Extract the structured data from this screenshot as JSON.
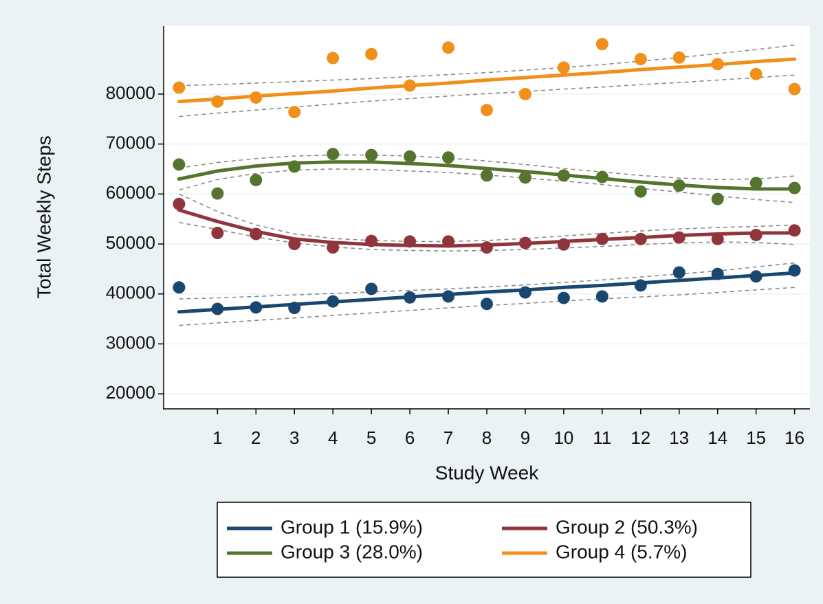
{
  "chart_data": {
    "type": "line",
    "x_label": "Study Week",
    "y_label": "Total Weekly Steps",
    "x": [
      0,
      1,
      2,
      3,
      4,
      5,
      6,
      7,
      8,
      9,
      10,
      11,
      12,
      13,
      14,
      15,
      16
    ],
    "xlim": [
      -0.4,
      16.4
    ],
    "xticks": [
      1,
      2,
      3,
      4,
      5,
      6,
      7,
      8,
      9,
      10,
      11,
      12,
      13,
      14,
      15,
      16
    ],
    "ylim": [
      17000,
      93600
    ],
    "yticks": [
      20000,
      30000,
      40000,
      50000,
      60000,
      70000,
      80000
    ],
    "grid": true,
    "series": [
      {
        "name": "Group 1 (15.9%)",
        "color": "#1a476f",
        "values": [
          41300,
          37000,
          37300,
          37200,
          38500,
          41000,
          39300,
          39500,
          38000,
          40300,
          39200,
          39500,
          41700,
          44300,
          44000,
          43500,
          44700
        ],
        "fit": [
          36400,
          36900,
          37400,
          37900,
          38400,
          38900,
          39400,
          39900,
          40400,
          40800,
          41300,
          41700,
          42200,
          42700,
          43200,
          43700,
          44200
        ],
        "ci_lower": [
          33700,
          34200,
          34700,
          35200,
          35700,
          36200,
          36700,
          37200,
          37700,
          38100,
          38600,
          39000,
          39400,
          39800,
          40300,
          40800,
          41300
        ],
        "ci_upper": [
          39000,
          39200,
          39500,
          39800,
          40100,
          40400,
          40700,
          41000,
          41400,
          41800,
          42300,
          42800,
          43400,
          44000,
          44600,
          45400,
          46200
        ]
      },
      {
        "name": "Group 2 (50.3%)",
        "color": "#90353b",
        "values": [
          58000,
          52200,
          52000,
          50000,
          49300,
          50600,
          50500,
          50500,
          49300,
          50200,
          49900,
          51000,
          51000,
          51300,
          51000,
          51800,
          52700
        ],
        "fit": [
          56800,
          54500,
          52500,
          51000,
          50300,
          49900,
          49700,
          49600,
          49800,
          50100,
          50500,
          50900,
          51300,
          51700,
          52000,
          52200,
          52200
        ],
        "ci_lower": [
          54300,
          52900,
          51400,
          50200,
          49400,
          48900,
          48700,
          48600,
          48700,
          48900,
          49200,
          49500,
          49900,
          50200,
          50400,
          50300,
          49900
        ],
        "ci_upper": [
          60000,
          56500,
          53800,
          52000,
          51100,
          50700,
          50500,
          50500,
          50700,
          51100,
          51600,
          52100,
          52600,
          53000,
          53300,
          53500,
          53800
        ]
      },
      {
        "name": "Group 3 (28.0%)",
        "color": "#55752f",
        "values": [
          65900,
          60100,
          62800,
          65500,
          68000,
          67800,
          67500,
          67300,
          63700,
          63300,
          63700,
          63400,
          60500,
          61700,
          59000,
          62200,
          61200
        ],
        "fit": [
          63000,
          64600,
          65600,
          66200,
          66400,
          66400,
          66100,
          65700,
          65100,
          64500,
          63800,
          63100,
          62400,
          61800,
          61300,
          61000,
          61000
        ],
        "ci_lower": [
          60800,
          62900,
          64100,
          64800,
          65000,
          64900,
          64600,
          64300,
          63800,
          63200,
          62600,
          61900,
          61100,
          60400,
          59600,
          58900,
          58300
        ],
        "ci_upper": [
          65200,
          66300,
          67100,
          67600,
          67800,
          67800,
          67600,
          67200,
          66600,
          65900,
          65100,
          64400,
          63700,
          63200,
          62900,
          63000,
          63600
        ]
      },
      {
        "name": "Group 4 (5.7%)",
        "color": "#f0901a",
        "values": [
          81300,
          78500,
          79300,
          76400,
          87200,
          88000,
          81700,
          89300,
          76800,
          80000,
          85300,
          90000,
          87000,
          87300,
          86000,
          84000,
          81000
        ],
        "fit": [
          78500,
          79000,
          79600,
          80100,
          80600,
          81200,
          81700,
          82200,
          82800,
          83300,
          83800,
          84300,
          84900,
          85400,
          85900,
          86500,
          87000
        ],
        "ci_lower": [
          75500,
          76200,
          76800,
          77400,
          78000,
          78600,
          79100,
          79600,
          80100,
          80500,
          81000,
          81400,
          81900,
          82300,
          82800,
          83300,
          83800
        ],
        "ci_upper": [
          81700,
          81900,
          82200,
          82500,
          82800,
          83100,
          83500,
          83900,
          84300,
          84800,
          85300,
          85900,
          86600,
          87300,
          88100,
          88900,
          89800
        ]
      }
    ]
  }
}
